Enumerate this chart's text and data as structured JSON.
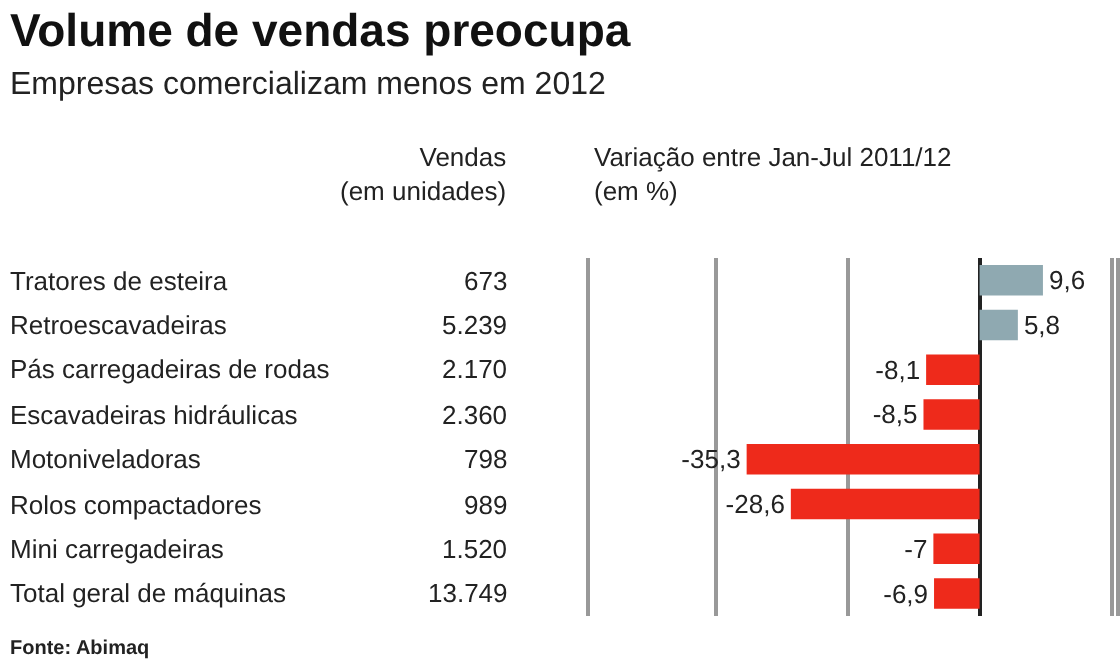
{
  "chart_data": {
    "type": "bar",
    "orientation": "horizontal",
    "title": "Volume de vendas preocupa",
    "subtitle": "Empresas comercializam menos em 2012",
    "categories": [
      "Tratores de esteira",
      "Retroescavadeiras",
      "Pás carregadeiras de rodas",
      "Escavadeiras hidráulicas",
      "Motoniveladoras",
      "Rolos compactadores",
      "Mini carregadeiras",
      "Total geral de máquinas"
    ],
    "values": [
      9.6,
      5.8,
      -8.1,
      -8.5,
      -35.3,
      -28.6,
      -7,
      -6.9
    ],
    "colors": [
      "#8fa9b1",
      "#8fa9b1",
      "#ee2a1b",
      "#ee2a1b",
      "#ee2a1b",
      "#ee2a1b",
      "#ee2a1b",
      "#ee2a1b"
    ],
    "value_labels": [
      "9,6",
      "5,8",
      "-8,1",
      "-8,5",
      "-35,3",
      "-28,6",
      "-7",
      "-6,9"
    ],
    "xlim": [
      -59,
      20.6
    ],
    "xticks": [
      {
        "value": -40,
        "label": null
      },
      {
        "value": -20,
        "label": null
      },
      {
        "value": 0,
        "label": null
      },
      {
        "value": 20,
        "label": null
      }
    ],
    "grid": "x",
    "legend": false,
    "annotations": [
      "Vendas\n(em unidades)",
      "Variação entre Jan-Jul 2011/12\n(em %)",
      "Fonte: Abimaq",
      "673",
      "5.239",
      "2.170",
      "2.360",
      "798",
      "989",
      "1.520",
      "13.749"
    ]
  }
}
